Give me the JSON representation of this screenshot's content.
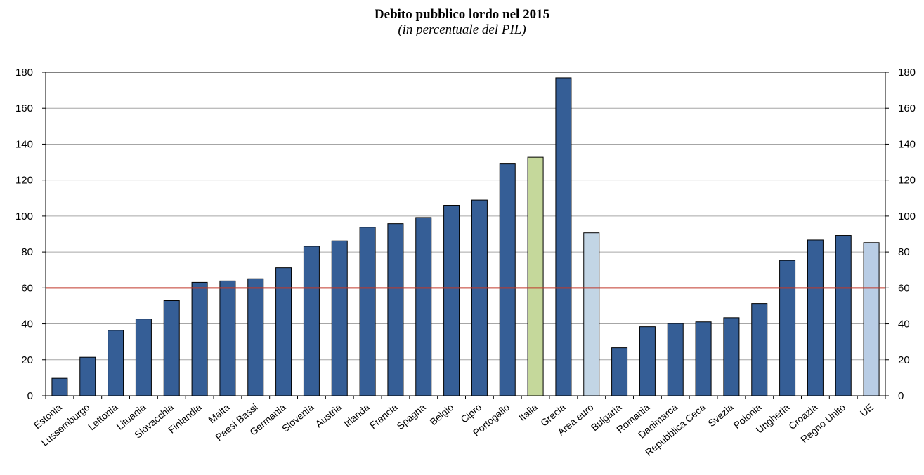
{
  "chart_data": {
    "type": "bar",
    "title": "Debito pubblico lordo nel 2015",
    "subtitle": "(in percentuale del PIL)",
    "categories": [
      "Estonia",
      "Lussemburgo",
      "Lettonia",
      "Lituania",
      "Slovacchia",
      "Finlandia",
      "Malta",
      "Paesi Bassi",
      "Germania",
      "Slovenia",
      "Austria",
      "Irlanda",
      "Francia",
      "Spagna",
      "Belgio",
      "Cipro",
      "Portogallo",
      "Italia",
      "Grecia",
      "Area euro",
      "Bulgaria",
      "Romania",
      "Danimarca",
      "Repubblica Ceca",
      "Svezia",
      "Polonia",
      "Ungheria",
      "Croazia",
      "Regno Unito",
      "UE"
    ],
    "values": [
      9.7,
      21.4,
      36.4,
      42.7,
      52.9,
      63.1,
      63.9,
      65.1,
      71.2,
      83.2,
      86.2,
      93.8,
      95.8,
      99.2,
      106.0,
      108.9,
      129.0,
      132.7,
      176.9,
      90.7,
      26.7,
      38.4,
      40.2,
      41.1,
      43.4,
      51.3,
      75.3,
      86.7,
      89.2,
      85.2
    ],
    "bar_colors": [
      "#355E96",
      "#355E96",
      "#355E96",
      "#355E96",
      "#355E96",
      "#355E96",
      "#355E96",
      "#355E96",
      "#355E96",
      "#355E96",
      "#355E96",
      "#355E96",
      "#355E96",
      "#355E96",
      "#355E96",
      "#355E96",
      "#355E96",
      "#C5D89B",
      "#355E96",
      "#C2D5E5",
      "#355E96",
      "#355E96",
      "#355E96",
      "#355E96",
      "#355E96",
      "#355E96",
      "#355E96",
      "#355E96",
      "#355E96",
      "#B9CDE5"
    ],
    "reference_line": {
      "value": 60,
      "color": "#C0392B"
    },
    "ylim": [
      0,
      180
    ],
    "yticks": [
      0,
      20,
      40,
      60,
      80,
      100,
      120,
      140,
      160,
      180
    ],
    "grid": true,
    "xlabel": "",
    "ylabel": ""
  }
}
